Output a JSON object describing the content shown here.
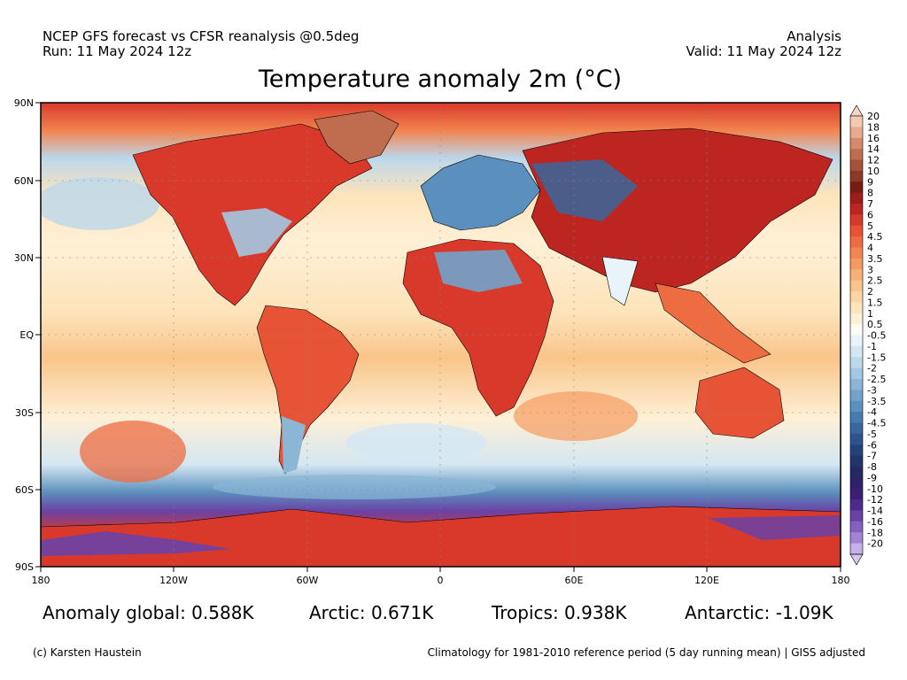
{
  "header": {
    "left_line1": "NCEP GFS forecast vs CFSR reanalysis @0.5deg",
    "left_line2": "Run: 11 May 2024 12z",
    "right_line1": "Analysis",
    "right_line2": "Valid: 11 May 2024 12z"
  },
  "title": "Temperature anomaly 2m (°C)",
  "map": {
    "projection": "equirectangular",
    "lat_labels": [
      "90N",
      "60N",
      "30N",
      "EQ",
      "30S",
      "60S",
      "90S"
    ],
    "lon_labels": [
      "180",
      "120W",
      "60W",
      "0",
      "60E",
      "120E",
      "180"
    ],
    "gridlines": "dotted"
  },
  "colorbar": {
    "labels": [
      "20",
      "18",
      "16",
      "14",
      "12",
      "10",
      "9",
      "8",
      "7",
      "6",
      "5",
      "4.5",
      "4",
      "3.5",
      "3",
      "2.5",
      "2",
      "1.5",
      "1",
      "0.5",
      "-0.5",
      "-1",
      "-1.5",
      "-2",
      "-2.5",
      "-3",
      "-3.5",
      "-4",
      "-4.5",
      "-5",
      "-6",
      "-7",
      "-8",
      "-9",
      "-10",
      "-12",
      "-14",
      "-16",
      "-18",
      "-20"
    ],
    "colors": [
      "#f3c9b3",
      "#e8ab8f",
      "#d68a6d",
      "#c06c4f",
      "#a55237",
      "#8b3a25",
      "#7a1a14",
      "#9c1d1a",
      "#bd2520",
      "#d8392a",
      "#e65435",
      "#ee6c42",
      "#f2844f",
      "#f59b60",
      "#f7b174",
      "#f9c58a",
      "#fbd6a2",
      "#fde4bb",
      "#fef0d6",
      "#fffdf3",
      "#e9f3fa",
      "#d4e7f3",
      "#bcd8eb",
      "#a4c8e1",
      "#8bb6d6",
      "#72a3ca",
      "#5b8fbd",
      "#477bae",
      "#38679d",
      "#2d548c",
      "#25437b",
      "#22356b",
      "#262a63",
      "#2f2169",
      "#3b1e75",
      "#4d2a8a",
      "#6a42a6",
      "#8460c0",
      "#a184d6",
      "#c4b1ea"
    ],
    "top_triangle_color": "#f6d4c3",
    "bottom_triangle_color": "#d4c8f2"
  },
  "stats": {
    "global": "Anomaly global: 0.588K",
    "arctic": "Arctic: 0.671K",
    "tropics": "Tropics: 0.938K",
    "antarctic": "Antarctic: -1.09K"
  },
  "footer": {
    "credit": "(c) Karsten Haustein",
    "note": "Climatology for 1981-2010 reference period (5 day running mean) | GISS adjusted"
  }
}
